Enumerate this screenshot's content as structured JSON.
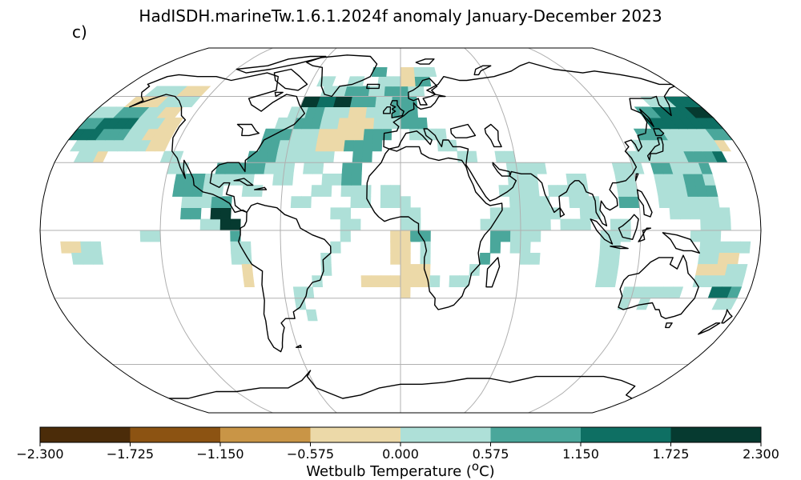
{
  "panel_label": "c)",
  "title": "HadISDH.marineTw.1.6.1.2024f anomaly January-December 2023",
  "colorbar": {
    "label": "Wetbulb Temperature (",
    "label_sup": "o",
    "label_tail": "C)",
    "ticks": [
      "−2.300",
      "−1.725",
      "−1.150",
      "−0.575",
      "0.000",
      "0.575",
      "1.150",
      "1.725",
      "2.300"
    ],
    "colors": [
      "#4b2c09",
      "#8c5312",
      "#c99546",
      "#ecd9a8",
      "#aee0d8",
      "#4aa79b",
      "#0e6f63",
      "#063a30"
    ]
  },
  "map": {
    "projection": "robinson",
    "land_color": "#ffffff",
    "coast_color": "#000000",
    "grid_color": "#b0b0b0",
    "cell_classes": {
      "t": "tan (-0.575 to 0.000)",
      "l": "light teal (0.000 to 0.575)",
      "m": "medium teal (0.575 to 1.150)",
      "d": "dark teal (1.150 to 1.725)",
      "x": "darkest teal (1.725 to 2.300)"
    }
  }
}
